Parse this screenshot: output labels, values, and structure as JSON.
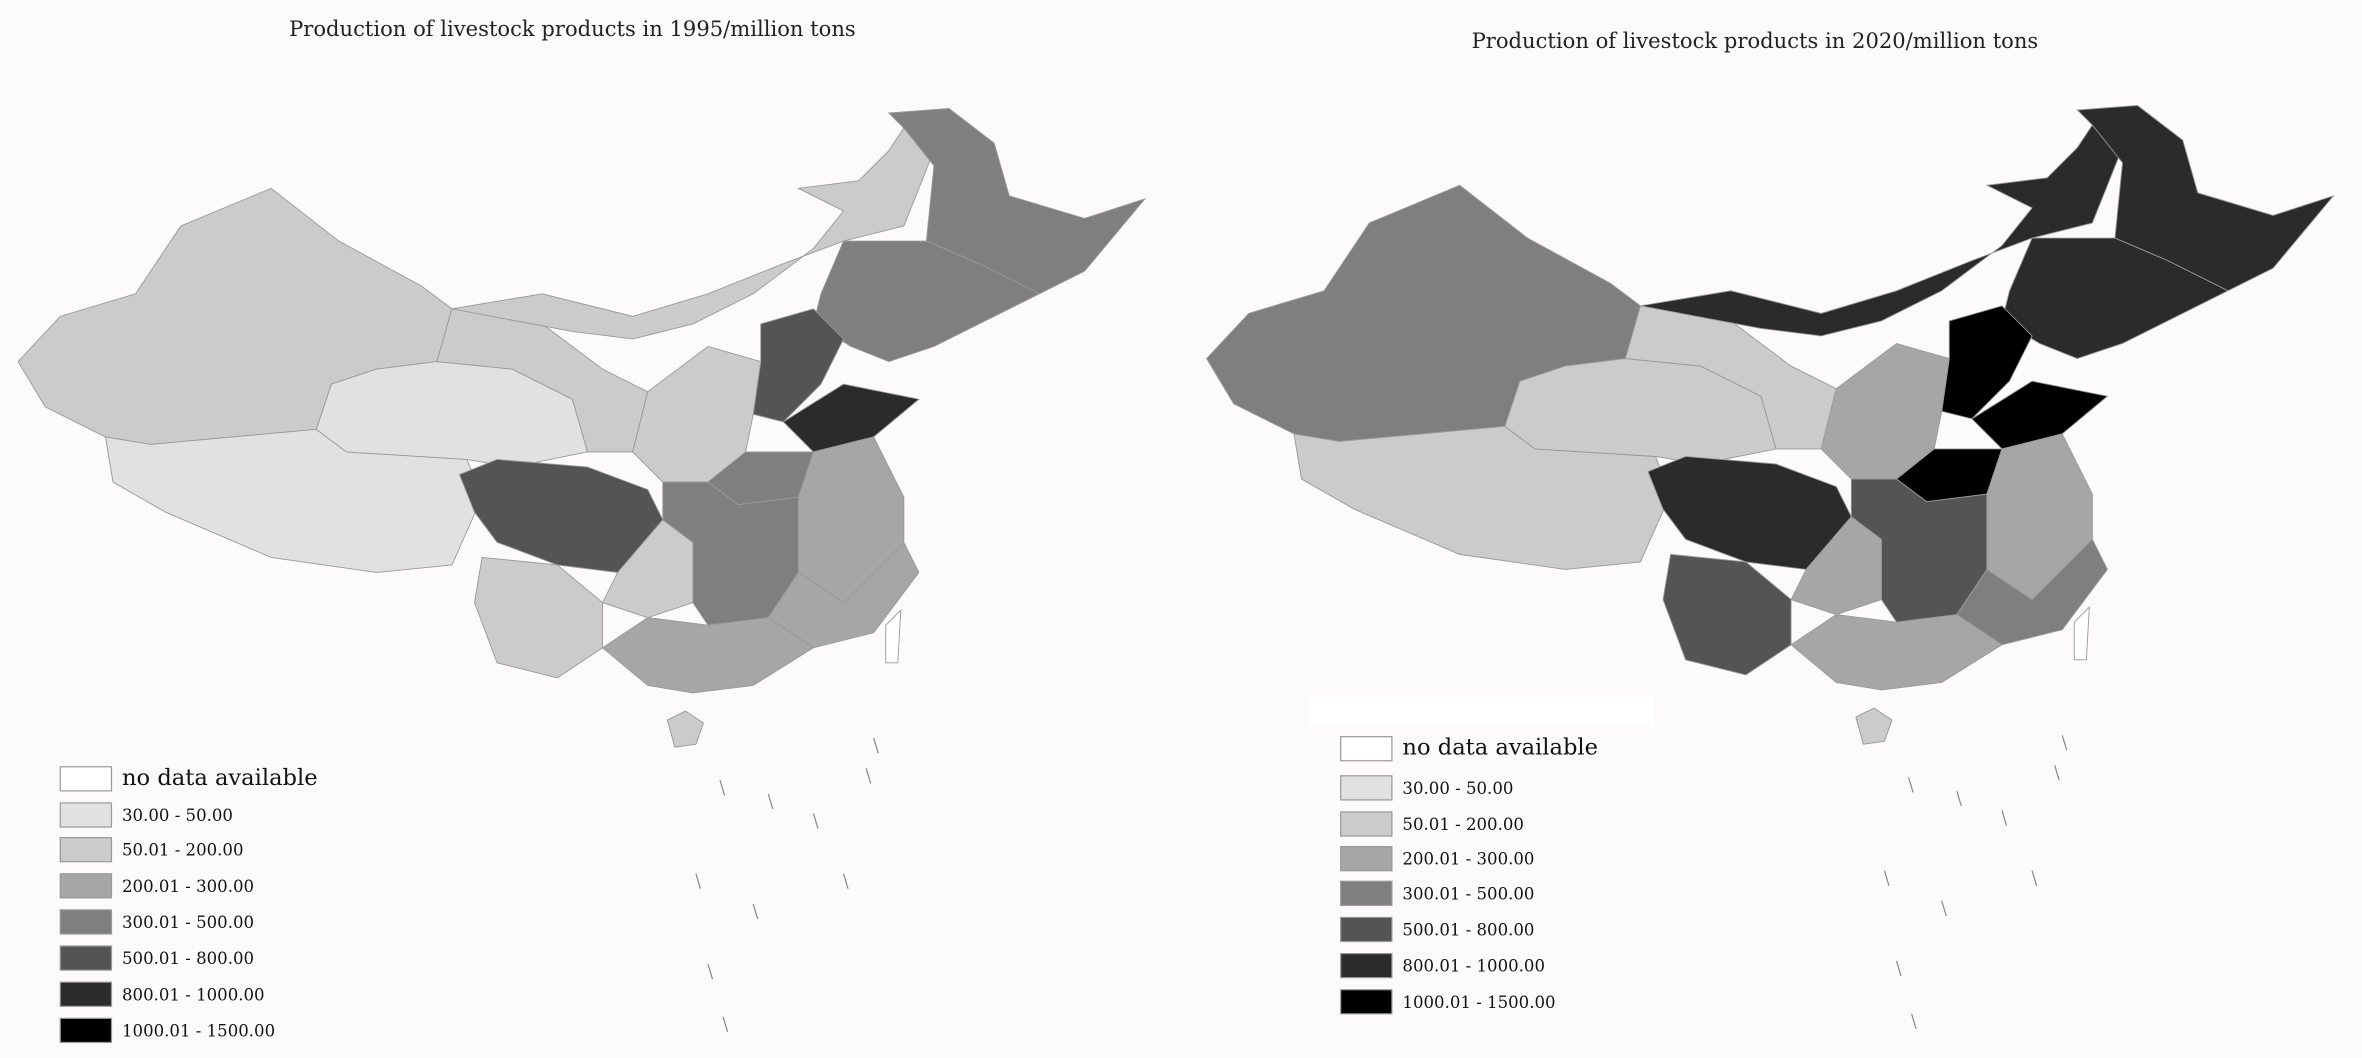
{
  "maps": [
    {
      "title": "Production of livestock products in 1995/million tons",
      "legend": [
        {
          "label": "no data available",
          "color": "#ffffff"
        },
        {
          "label": "30.00 - 50.00",
          "color": "#e1e1e1"
        },
        {
          "label": "50.01 - 200.00",
          "color": "#cbcbcb"
        },
        {
          "label": "200.01 - 300.00",
          "color": "#a6a6a6"
        },
        {
          "label": "300.01 - 500.00",
          "color": "#7f7f7f"
        },
        {
          "label": "500.01 - 800.00",
          "color": "#545454"
        },
        {
          "label": "800.01 - 1000.00",
          "color": "#2b2b2b"
        },
        {
          "label": "1000.01 - 1500.00",
          "color": "#000000"
        }
      ]
    },
    {
      "title": "Production of livestock products in 2020/million tons",
      "legend": [
        {
          "label": "no data available",
          "color": "#ffffff"
        },
        {
          "label": "30.00 - 50.00",
          "color": "#e1e1e1"
        },
        {
          "label": "50.01 - 200.00",
          "color": "#cbcbcb"
        },
        {
          "label": "200.01 - 300.00",
          "color": "#a6a6a6"
        },
        {
          "label": "300.01 - 500.00",
          "color": "#7f7f7f"
        },
        {
          "label": "500.01 - 800.00",
          "color": "#545454"
        },
        {
          "label": "800.01 - 1000.00",
          "color": "#2b2b2b"
        },
        {
          "label": "1000.01 - 1500.00",
          "color": "#000000"
        }
      ]
    }
  ]
}
